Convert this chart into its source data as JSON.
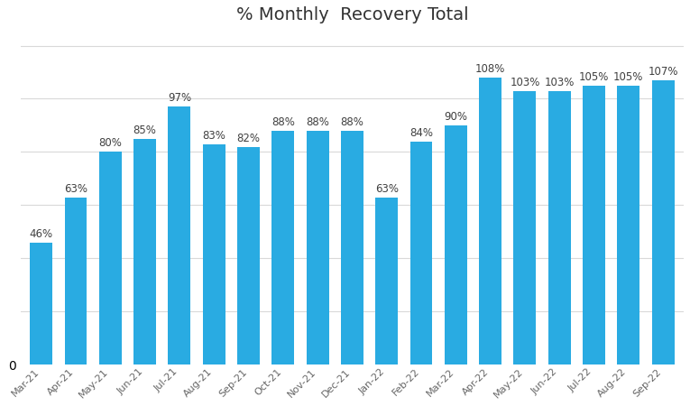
{
  "categories": [
    "Mar-21",
    "Apr-21",
    "May-21",
    "Jun-21",
    "Jul-21",
    "Aug-21",
    "Sep-21",
    "Oct-21",
    "Nov-21",
    "Dec-21",
    "Jan-22",
    "Feb-22",
    "Mar-22",
    "Apr-22",
    "May-22",
    "Jun-22",
    "Jul-22",
    "Aug-22",
    "Sep-22"
  ],
  "values": [
    46,
    63,
    80,
    85,
    97,
    83,
    82,
    88,
    88,
    88,
    63,
    84,
    90,
    108,
    103,
    103,
    105,
    105,
    107
  ],
  "bar_color": "#29ABE2",
  "title": "% Monthly  Recovery Total",
  "title_fontsize": 14,
  "label_fontsize": 8.5,
  "tick_fontsize": 8,
  "ylim": [
    0,
    125
  ],
  "y_tick_label": "0",
  "background_color": "#ffffff",
  "grid_color": "#d9d9d9"
}
